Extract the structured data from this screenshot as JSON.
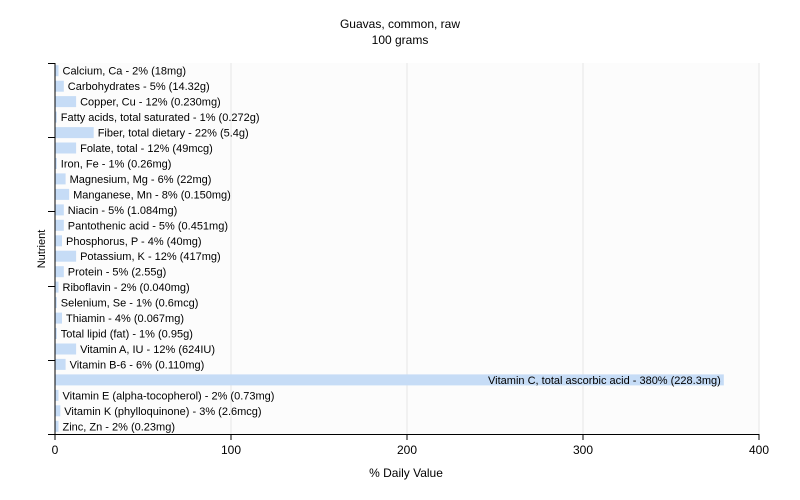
{
  "chart_data": {
    "type": "bar",
    "orientation": "horizontal",
    "title": "Guavas, common, raw",
    "subtitle": "100 grams",
    "xlabel": "% Daily Value",
    "ylabel": "Nutrient",
    "xlim": [
      0,
      400
    ],
    "xticks": [
      0,
      100,
      200,
      300,
      400
    ],
    "grid": true,
    "bar_color": "#c6dcf6",
    "categories": [
      "Calcium, Ca - 2% (18mg)",
      "Carbohydrates - 5% (14.32g)",
      "Copper, Cu - 12% (0.230mg)",
      "Fatty acids, total saturated - 1% (0.272g)",
      "Fiber, total dietary - 22% (5.4g)",
      "Folate, total - 12% (49mcg)",
      "Iron, Fe - 1% (0.26mg)",
      "Magnesium, Mg - 6% (22mg)",
      "Manganese, Mn - 8% (0.150mg)",
      "Niacin - 5% (1.084mg)",
      "Pantothenic acid - 5% (0.451mg)",
      "Phosphorus, P - 4% (40mg)",
      "Potassium, K - 12% (417mg)",
      "Protein - 5% (2.55g)",
      "Riboflavin - 2% (0.040mg)",
      "Selenium, Se - 1% (0.6mcg)",
      "Thiamin - 4% (0.067mg)",
      "Total lipid (fat) - 1% (0.95g)",
      "Vitamin A, IU - 12% (624IU)",
      "Vitamin B-6 - 6% (0.110mg)",
      "Vitamin C, total ascorbic acid - 380% (228.3mg)",
      "Vitamin E (alpha-tocopherol) - 2% (0.73mg)",
      "Vitamin K (phylloquinone) - 3% (2.6mcg)",
      "Zinc, Zn - 2% (0.23mg)"
    ],
    "values": [
      2,
      5,
      12,
      1,
      22,
      12,
      1,
      6,
      8,
      5,
      5,
      4,
      12,
      5,
      2,
      1,
      4,
      1,
      12,
      6,
      380,
      2,
      3,
      2
    ]
  }
}
